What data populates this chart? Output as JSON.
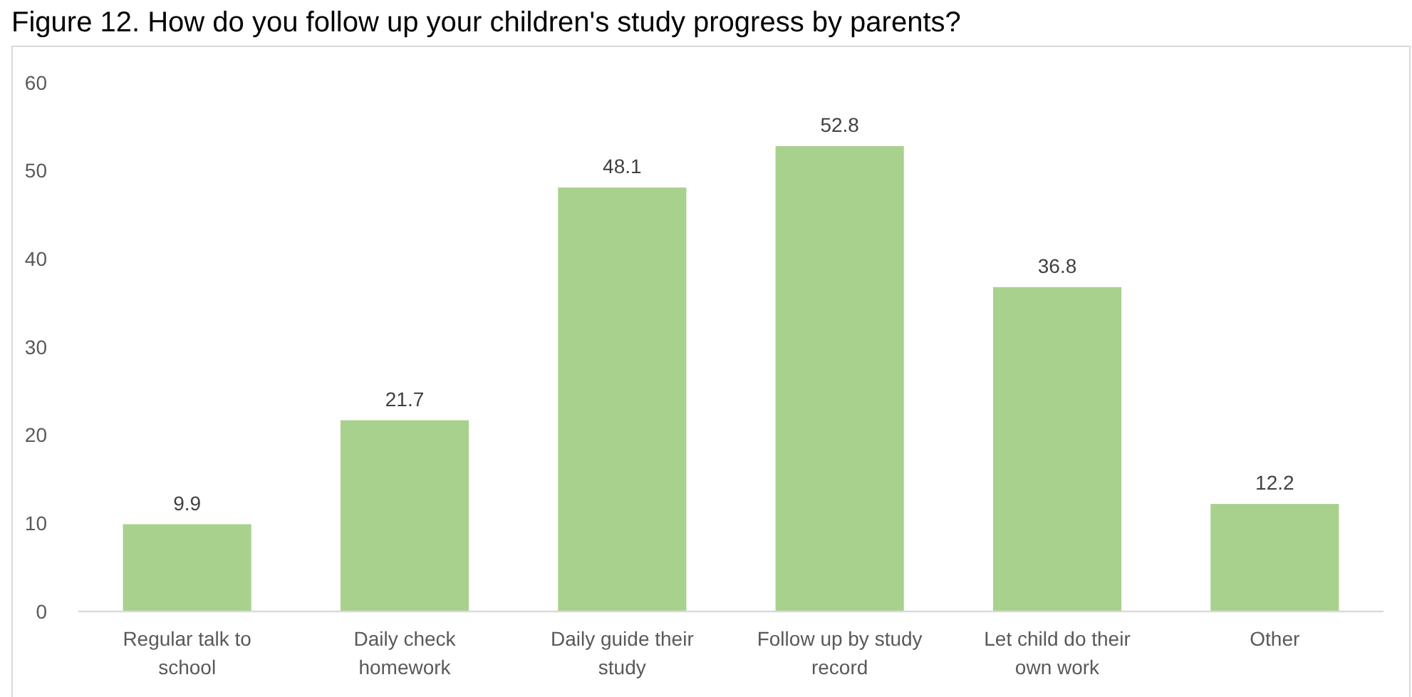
{
  "chart_data": {
    "type": "bar",
    "title": "Figure 12. How do you follow up your children's study progress by parents?",
    "categories": [
      "Regular talk to school",
      "Daily check homework",
      "Daily guide their study",
      "Follow up by study record",
      "Let child do their own work",
      "Other"
    ],
    "values": [
      9.9,
      21.7,
      48.1,
      52.8,
      36.8,
      12.2
    ],
    "color": "#a9d18e",
    "ylim": [
      0,
      60
    ],
    "yticks": [
      0,
      10,
      20,
      30,
      40,
      50,
      60
    ],
    "grid": false,
    "data_labels": true
  }
}
